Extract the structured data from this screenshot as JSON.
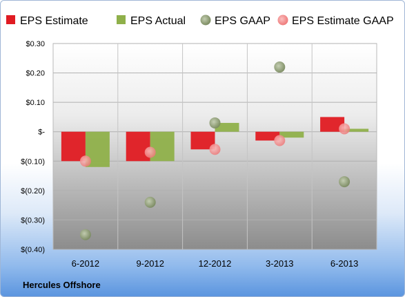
{
  "chart_data": {
    "type": "bar",
    "categories": [
      "6-2012",
      "9-2012",
      "12-2012",
      "3-2013",
      "6-2013"
    ],
    "series": [
      {
        "name": "EPS Estimate",
        "kind": "bar",
        "color": "#e01b22",
        "values": [
          -0.1,
          -0.1,
          -0.06,
          -0.03,
          0.05
        ]
      },
      {
        "name": "EPS Actual",
        "kind": "bar",
        "color": "#8fb04a",
        "values": [
          -0.12,
          -0.1,
          0.03,
          -0.02,
          0.01
        ]
      },
      {
        "name": "EPS GAAP",
        "kind": "point",
        "color": "#8a9a6e",
        "values": [
          -0.35,
          -0.24,
          0.03,
          0.22,
          -0.17
        ]
      },
      {
        "name": "EPS Estimate GAAP",
        "kind": "point",
        "color": "#f08080",
        "values": [
          -0.1,
          -0.07,
          -0.06,
          -0.03,
          0.01
        ]
      }
    ],
    "ylim": [
      -0.4,
      0.3
    ],
    "yticks": [
      0.3,
      0.2,
      0.1,
      0.0,
      -0.1,
      -0.2,
      -0.3,
      -0.4
    ],
    "ytick_labels": [
      "$0.30",
      "$0.20",
      "$0.10",
      "$-",
      "$(0.10)",
      "$(0.20)",
      "$(0.30)",
      "$(0.40)"
    ],
    "grid": true,
    "legend_position": "top"
  },
  "company": "Hercules Offshore"
}
